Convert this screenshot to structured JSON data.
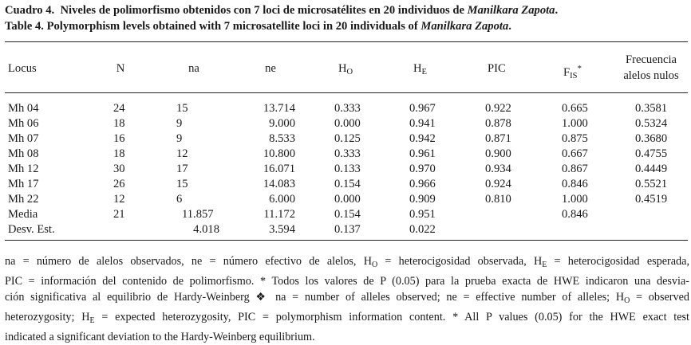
{
  "caption": {
    "line1_label": "Cuadro 4.",
    "line1_text": "Niveles de polimorfismo obtenidos con 7 loci de microsatélites en 20 individuos de",
    "line1_species": "Manilkara Zapota",
    "line1_end": ".",
    "line2_label": "Table 4.",
    "line2_text": "Polymorphism levels obtained with 7 microsatellite loci in 20 individuals of",
    "line2_species": "Manilkara Zapota",
    "line2_end": "."
  },
  "headers": {
    "locus": "Locus",
    "n": "N",
    "na": "na",
    "ne": "ne",
    "ho_base": "H",
    "ho_sub": "O",
    "he_base": "H",
    "he_sub": "E",
    "pic": "PIC",
    "fis_base": "F",
    "fis_sub": "IS",
    "fis_sup": "*",
    "null_line1": "Frecuencia",
    "null_line2": "alelos nulos"
  },
  "rows": [
    {
      "locus": "Mh 04",
      "n": "24",
      "na": "15",
      "ne": "13.714",
      "ho": "0.333",
      "he": "0.967",
      "pic": "0.922",
      "fis": "0.665",
      "nulls": "0.3581"
    },
    {
      "locus": "Mh 06",
      "n": "18",
      "na": "9",
      "ne": "9.000",
      "ho": "0.000",
      "he": "0.941",
      "pic": "0.878",
      "fis": "1.000",
      "nulls": "0.5324"
    },
    {
      "locus": "Mh 07",
      "n": "16",
      "na": "9",
      "ne": "8.533",
      "ho": "0.125",
      "he": "0.942",
      "pic": "0.871",
      "fis": "0.875",
      "nulls": "0.3680"
    },
    {
      "locus": "Mh 08",
      "n": "18",
      "na": "12",
      "ne": "10.800",
      "ho": "0.333",
      "he": "0.961",
      "pic": "0.900",
      "fis": "0.667",
      "nulls": "0.4755"
    },
    {
      "locus": "Mh 12",
      "n": "30",
      "na": "17",
      "ne": "16.071",
      "ho": "0.133",
      "he": "0.970",
      "pic": "0.934",
      "fis": "0.867",
      "nulls": "0.4449"
    },
    {
      "locus": "Mh 17",
      "n": "26",
      "na": "15",
      "ne": "14.083",
      "ho": "0.154",
      "he": "0.966",
      "pic": "0.924",
      "fis": "0.846",
      "nulls": "0.5521"
    },
    {
      "locus": "Mh 22",
      "n": "12",
      "na": "6",
      "ne": "6.000",
      "ho": "0.000",
      "he": "0.909",
      "pic": "0.810",
      "fis": "1.000",
      "nulls": "0.4519"
    }
  ],
  "summary": [
    {
      "label": "Media",
      "n": "21",
      "na": "11.857",
      "ne": "11.172",
      "ho": "0.154",
      "he": "0.951",
      "fis": "0.846"
    },
    {
      "label": "Desv. Est.",
      "na": "4.018",
      "ne": "3.594",
      "ho": "0.137",
      "he": "0.022"
    }
  ],
  "footnote": {
    "l1a": "na = número de alelos observados, ne = número efectivo de alelos, H",
    "l1b": "O",
    "l1c": " = heterocigosidad observada, H",
    "l1d": "E",
    "l1e": " = heterocigosidad esperada,",
    "l2": "PIC = información del contenido de polimorfismo. * Todos los valores de P (0.05) para la prueba exacta de HWE indicaron una desvia-",
    "l3a": "ción significativa al equilibrio de Hardy-Weinberg ❖ na = number of alleles observed; ne = effective number of alleles; H",
    "l3b": "O",
    "l3c": " = observed",
    "l4a": "heterozygosity; H",
    "l4b": "E",
    "l4c": " = expected heterozygosity, PIC = polymorphism information content. * All P values (0.05) for the HWE exact test",
    "l5": "indicated a significant deviation to the Hardy-Weinberg equilibrium."
  }
}
